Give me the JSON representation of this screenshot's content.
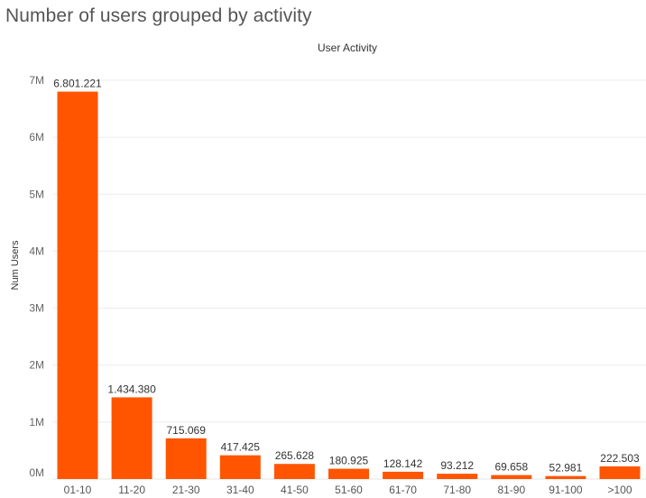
{
  "chart_data": {
    "type": "bar",
    "title": "Number of users grouped by activity",
    "column_header": "User Activity",
    "ylabel": "Num Users",
    "xlabel": "",
    "categories": [
      "01-10",
      "11-20",
      "21-30",
      "31-40",
      "41-50",
      "51-60",
      "61-70",
      "71-80",
      "81-90",
      "91-100",
      ">100"
    ],
    "values": [
      6801221,
      1434380,
      715069,
      417425,
      265628,
      180925,
      128142,
      93212,
      69658,
      52981,
      222503
    ],
    "value_labels": [
      "6.801.221",
      "1.434.380",
      "715.069",
      "417.425",
      "265.628",
      "180.925",
      "128.142",
      "93.212",
      "69.658",
      "52.981",
      "222.503"
    ],
    "ylim": [
      0,
      7000000
    ],
    "yticks": [
      {
        "value": 0,
        "label": "0M"
      },
      {
        "value": 1000000,
        "label": "1M"
      },
      {
        "value": 2000000,
        "label": "2M"
      },
      {
        "value": 3000000,
        "label": "3M"
      },
      {
        "value": 4000000,
        "label": "4M"
      },
      {
        "value": 5000000,
        "label": "5M"
      },
      {
        "value": 6000000,
        "label": "6M"
      },
      {
        "value": 7000000,
        "label": "7M"
      }
    ],
    "grid": true,
    "bar_color": "#FF5500"
  }
}
